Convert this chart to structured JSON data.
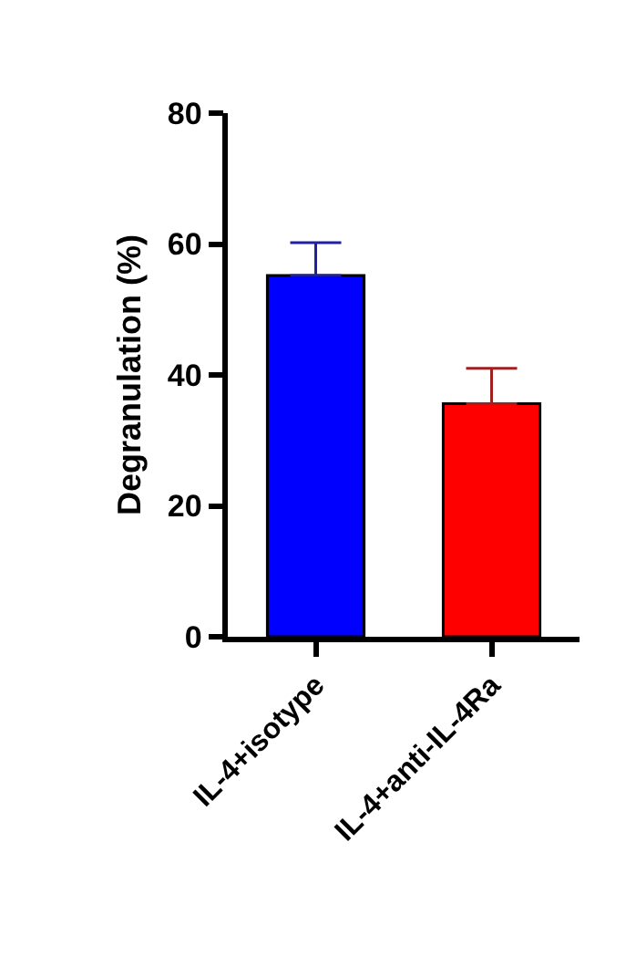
{
  "chart_data": {
    "type": "bar",
    "ylabel": "Degranulation (%)",
    "categories": [
      "IL-4+isotype",
      "IL-4+anti-IL-4Ra"
    ],
    "values": [
      55.2,
      35.6
    ],
    "colors": [
      "#0000ff",
      "#ff0000"
    ],
    "errors": [
      [
        55.2,
        60.2
      ],
      [
        35.6,
        41
      ]
    ],
    "ylim": [
      0,
      80
    ],
    "yticks": [
      0,
      20,
      40,
      60,
      80
    ]
  }
}
